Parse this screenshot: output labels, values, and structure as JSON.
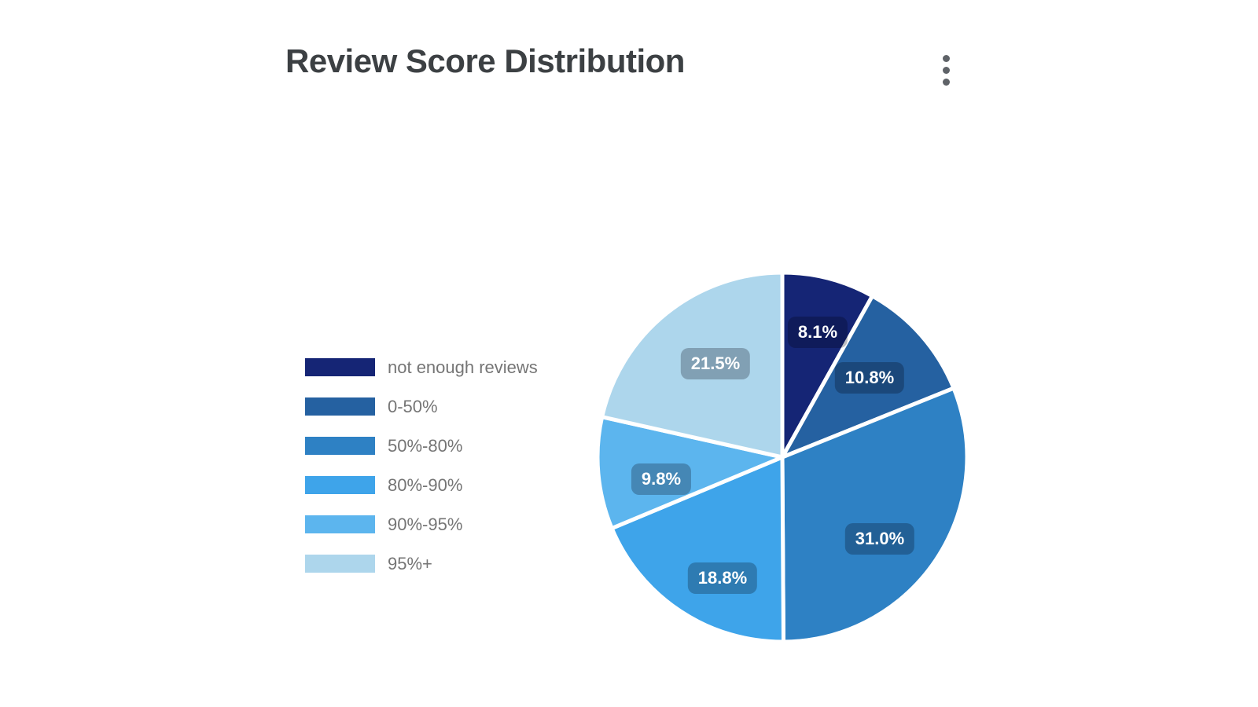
{
  "header": {
    "title": "Review Score Distribution",
    "options_icon": "kebab-vertical-icon"
  },
  "chart_data": {
    "type": "pie",
    "title": "Review Score Distribution",
    "categories": [
      "not enough reviews",
      "0-50%",
      "50%-80%",
      "80%-90%",
      "90%-95%",
      "95%+"
    ],
    "values": [
      8.1,
      10.8,
      31.0,
      18.8,
      9.8,
      21.5
    ],
    "labels": [
      "8.1%",
      "10.8%",
      "31.0%",
      "18.8%",
      "9.8%",
      "21.5%"
    ],
    "unit": "%",
    "total": 100.0,
    "colors": [
      "#152575",
      "#2561A1",
      "#2E81C4",
      "#3EA4EA",
      "#5CB5EE",
      "#ADD6EC"
    ],
    "legend_position": "left",
    "start_angle_deg": 0,
    "direction": "clockwise",
    "slice_border_color": "#FFFFFF",
    "label_style": {
      "text_color": "#FFFFFF",
      "badge_color": "rgba(0,0,10,0.25)"
    },
    "title_color": "#3C4043",
    "legend_text_color": "#757575"
  }
}
